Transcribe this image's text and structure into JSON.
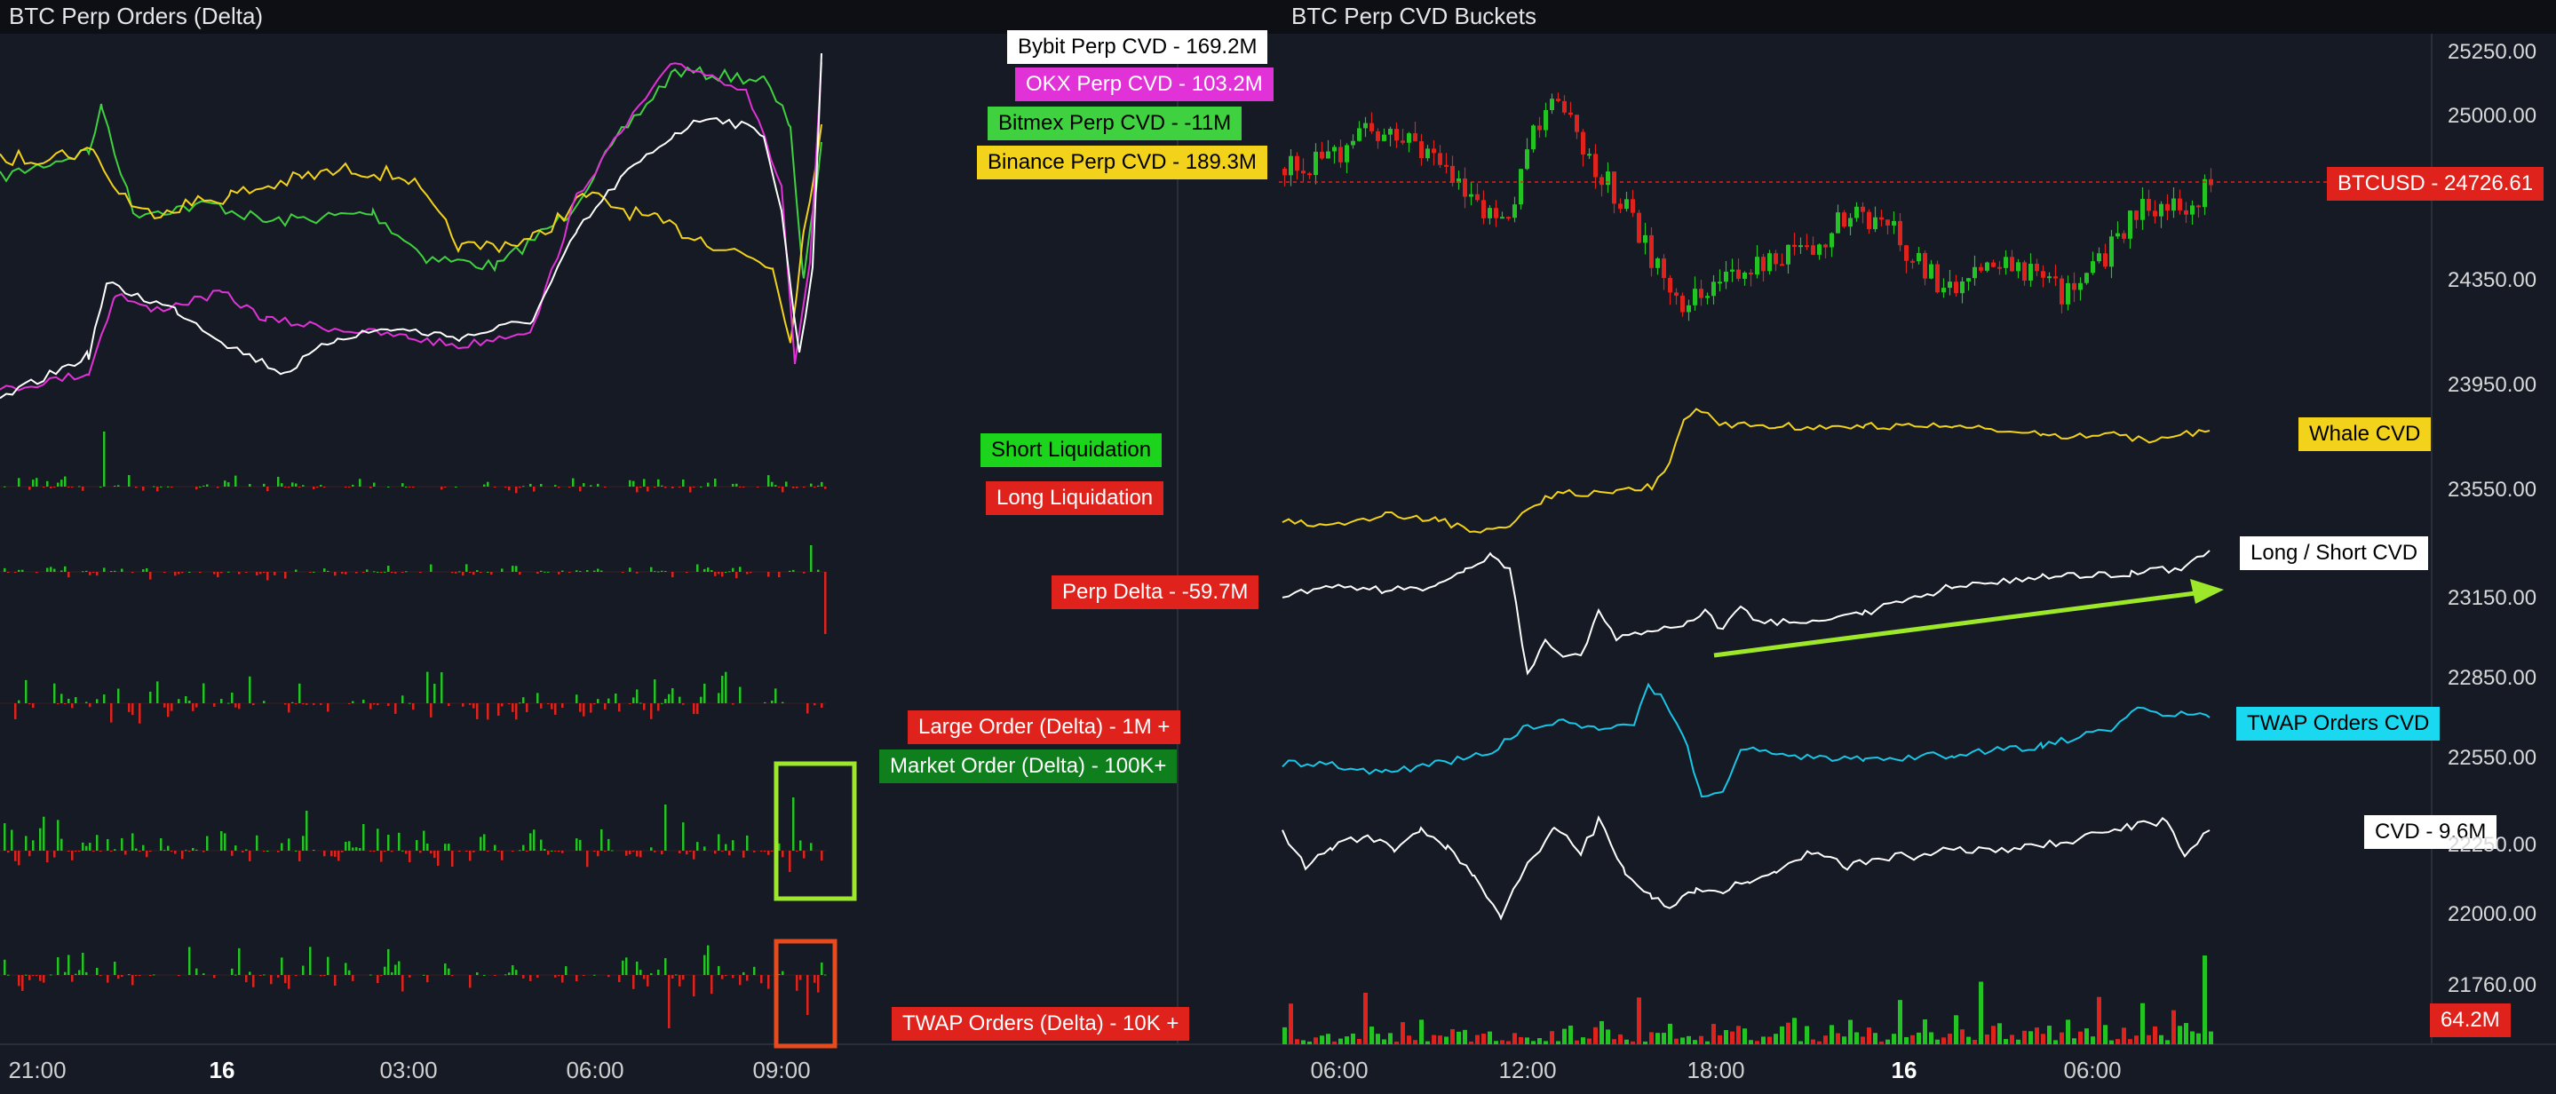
{
  "left_panel": {
    "title": "BTC Perp Orders (Delta)",
    "labels": {
      "bybit": "Bybit Perp CVD  -  169.2M",
      "okx": "OKX Perp CVD  -  103.2M",
      "bitmex": "Bitmex Perp CVD  -  -11M",
      "binance": "Binance Perp CVD  -  189.3M",
      "short_liq": "Short Liquidation",
      "long_liq": "Long Liquidation",
      "perp_delta": "Perp Delta  -  -59.7M",
      "large_order": "Large Order (Delta) - 1M +",
      "market_order": "Market Order (Delta) - 100K+",
      "twap_orders": "TWAP Orders (Delta) - 10K +"
    },
    "x_axis": [
      "21:00",
      "16",
      "03:00",
      "06:00",
      "09:00"
    ]
  },
  "right_panel": {
    "title": "BTC Perp CVD Buckets",
    "labels": {
      "btcusd": "BTCUSD  -  24726.61",
      "whale_cvd": "Whale CVD",
      "long_short_cvd": "Long / Short CVD",
      "twap_cvd": "TWAP Orders CVD",
      "cvd": "CVD  -  9.6M",
      "volume": "64.2M"
    },
    "x_axis": [
      "06:00",
      "12:00",
      "18:00",
      "16",
      "06:00"
    ],
    "y_axis": [
      "25250.00",
      "25000.00",
      "24350.00",
      "23950.00",
      "23550.00",
      "23150.00",
      "22850.00",
      "22550.00",
      "22250.00",
      "22000.00",
      "21760.00"
    ]
  },
  "colors": {
    "background": "#161a25",
    "bybit": "#ffffff",
    "okx": "#e032d6",
    "bitmex": "#3fd13f",
    "binance": "#f2d21b",
    "up": "#22c322",
    "down": "#e0221c",
    "twap": "#19c6e6",
    "annotation": "#9ee82a"
  }
}
